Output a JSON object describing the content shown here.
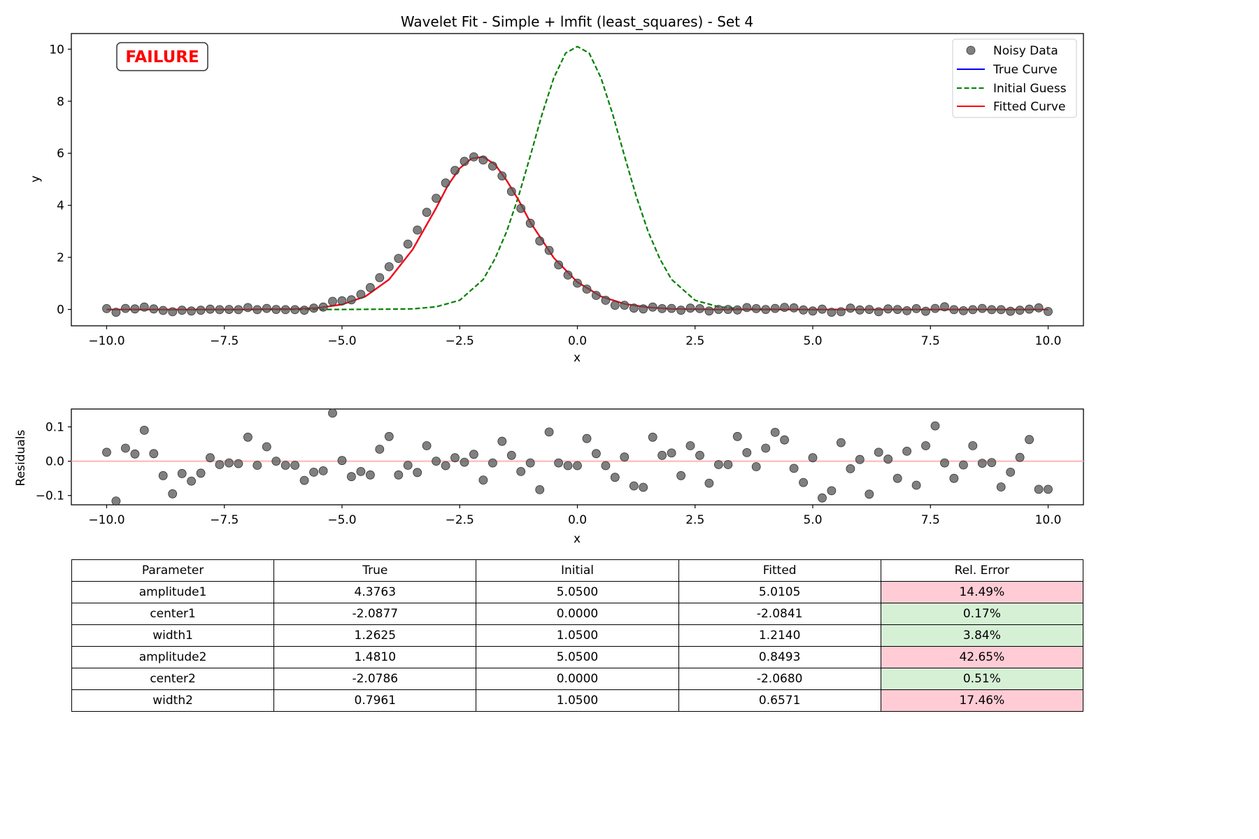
{
  "chart_data": [
    {
      "type": "scatter",
      "title": "Wavelet Fit - Simple + lmfit (least_squares) - Set 4",
      "xlabel": "x",
      "ylabel": "y",
      "xlim": [
        -10.75,
        10.75
      ],
      "ylim": [
        -0.63,
        10.6
      ],
      "xticks": [
        -10.0,
        -7.5,
        -5.0,
        -2.5,
        0.0,
        2.5,
        5.0,
        7.5,
        10.0
      ],
      "xtick_labels": [
        "−10.0",
        "−7.5",
        "−5.0",
        "−2.5",
        "0.0",
        "2.5",
        "5.0",
        "7.5",
        "10.0"
      ],
      "yticks": [
        0,
        2,
        4,
        6,
        8,
        10
      ],
      "ytick_labels": [
        "0",
        "2",
        "4",
        "6",
        "8",
        "10"
      ],
      "grid": false,
      "legend_position": "top-right",
      "annotation": {
        "text": "FAILURE",
        "color": "#ff0000"
      },
      "series": [
        {
          "name": "Noisy Data",
          "kind": "markers",
          "color": "#555555",
          "x": [
            -10.0,
            -9.8,
            -9.6,
            -9.4,
            -9.2,
            -9.0,
            -8.8,
            -8.6,
            -8.4,
            -8.2,
            -8.0,
            -7.8,
            -7.6,
            -7.4,
            -7.2,
            -7.0,
            -6.8,
            -6.6,
            -6.4,
            -6.2,
            -6.0,
            -5.8,
            -5.6,
            -5.4,
            -5.2,
            -5.0,
            -4.8,
            -4.6,
            -4.4,
            -4.2,
            -4.0,
            -3.8,
            -3.6,
            -3.4,
            -3.2,
            -3.0,
            -2.8,
            -2.6,
            -2.4,
            -2.2,
            -2.0,
            -1.8,
            -1.6,
            -1.4,
            -1.2,
            -1.0,
            -0.8,
            -0.6,
            -0.4,
            -0.2,
            0.0,
            0.2,
            0.4,
            0.6,
            0.8,
            1.0,
            1.2,
            1.4,
            1.6,
            1.8,
            2.0,
            2.2,
            2.4,
            2.6,
            2.8,
            3.0,
            3.2,
            3.4,
            3.6,
            3.8,
            4.0,
            4.2,
            4.4,
            4.6,
            4.8,
            5.0,
            5.2,
            5.4,
            5.6,
            5.8,
            6.0,
            6.2,
            6.4,
            6.6,
            6.8,
            7.0,
            7.2,
            7.4,
            7.6,
            7.8,
            8.0,
            8.2,
            8.4,
            8.6,
            8.8,
            9.0,
            9.2,
            9.4,
            9.6,
            9.8,
            10.0
          ],
          "y": [
            0.03,
            -0.11,
            0.04,
            0.02,
            0.09,
            0.02,
            -0.04,
            -0.09,
            -0.03,
            -0.06,
            -0.03,
            0.01,
            -0.01,
            0.0,
            -0.01,
            0.07,
            -0.01,
            0.04,
            0.0,
            -0.01,
            -0.01,
            -0.03,
            0.05,
            0.09,
            0.31,
            0.33,
            0.37,
            0.58,
            0.84,
            1.22,
            1.64,
            1.96,
            2.51,
            3.05,
            3.73,
            4.27,
            4.86,
            5.34,
            5.69,
            5.86,
            5.74,
            5.51,
            5.13,
            4.53,
            3.88,
            3.31,
            2.63,
            2.27,
            1.71,
            1.32,
            1.01,
            0.78,
            0.54,
            0.35,
            0.16,
            0.16,
            0.05,
            0.02,
            0.09,
            0.03,
            0.04,
            -0.03,
            0.05,
            0.03,
            -0.06,
            0.0,
            0.0,
            -0.02,
            0.07,
            0.03,
            0.0,
            0.04,
            0.08,
            0.06,
            -0.02,
            -0.06,
            0.01,
            -0.11,
            -0.09,
            0.05,
            -0.02,
            0.0,
            -0.09,
            0.02,
            0.0,
            -0.05,
            0.03,
            -0.07,
            0.04,
            0.1,
            -0.01,
            -0.05,
            -0.01,
            0.04,
            -0.01,
            -0.01,
            -0.07,
            -0.03,
            0.01,
            0.06,
            -0.08
          ]
        },
        {
          "name": "True Curve",
          "kind": "line",
          "color": "#0000ff",
          "dash": "solid",
          "x": [
            -10.0,
            -9.0,
            -8.0,
            -7.0,
            -6.0,
            -5.5,
            -5.0,
            -4.5,
            -4.0,
            -3.5,
            -3.0,
            -2.75,
            -2.5,
            -2.25,
            -2.0,
            -1.75,
            -1.5,
            -1.25,
            -1.0,
            -0.5,
            0.0,
            0.5,
            1.0,
            1.5,
            2.0,
            3.0,
            4.0,
            5.0,
            6.0,
            7.0,
            8.0,
            9.0,
            10.0
          ],
          "y": [
            0.0,
            0.0,
            0.0,
            0.0,
            0.02,
            0.06,
            0.19,
            0.5,
            1.15,
            2.3,
            3.9,
            4.77,
            5.42,
            5.8,
            5.86,
            5.57,
            4.95,
            4.2,
            3.35,
            1.98,
            1.05,
            0.5,
            0.21,
            0.08,
            0.02,
            0.0,
            0.0,
            0.0,
            0.0,
            0.0,
            0.0,
            0.0,
            0.0
          ]
        },
        {
          "name": "Initial Guess",
          "kind": "line",
          "color": "#008000",
          "dash": "dashed",
          "x": [
            -10.0,
            -6.0,
            -5.0,
            -4.0,
            -3.5,
            -3.0,
            -2.5,
            -2.0,
            -1.75,
            -1.5,
            -1.25,
            -1.0,
            -0.75,
            -0.5,
            -0.25,
            0.0,
            0.25,
            0.5,
            0.75,
            1.0,
            1.25,
            1.5,
            1.75,
            2.0,
            2.5,
            3.0,
            3.5,
            4.0,
            5.0,
            6.0,
            10.0
          ],
          "y": [
            0.0,
            0.0,
            0.0,
            0.01,
            0.02,
            0.1,
            0.35,
            1.15,
            1.95,
            3.0,
            4.35,
            5.9,
            7.5,
            8.9,
            9.85,
            10.1,
            9.85,
            8.9,
            7.5,
            5.9,
            4.35,
            3.0,
            1.95,
            1.15,
            0.35,
            0.1,
            0.02,
            0.01,
            0.0,
            0.0,
            0.0
          ]
        },
        {
          "name": "Fitted Curve",
          "kind": "line",
          "color": "#ff0000",
          "dash": "solid",
          "x": [
            -10.0,
            -9.0,
            -8.0,
            -7.0,
            -6.0,
            -5.5,
            -5.0,
            -4.5,
            -4.0,
            -3.5,
            -3.0,
            -2.75,
            -2.5,
            -2.25,
            -2.0,
            -1.75,
            -1.5,
            -1.25,
            -1.0,
            -0.5,
            0.0,
            0.5,
            1.0,
            1.5,
            2.0,
            3.0,
            4.0,
            5.0,
            6.0,
            7.0,
            8.0,
            9.0,
            10.0
          ],
          "y": [
            0.0,
            0.0,
            0.0,
            0.0,
            0.02,
            0.06,
            0.19,
            0.5,
            1.15,
            2.3,
            3.9,
            4.77,
            5.42,
            5.8,
            5.86,
            5.57,
            4.95,
            4.2,
            3.35,
            1.98,
            1.05,
            0.5,
            0.21,
            0.08,
            0.02,
            0.0,
            0.0,
            0.0,
            0.0,
            0.0,
            0.0,
            0.0,
            0.0
          ]
        }
      ]
    },
    {
      "type": "scatter",
      "title": "",
      "xlabel": "x",
      "ylabel": "Residuals",
      "xlim": [
        -10.75,
        10.75
      ],
      "ylim": [
        -0.127,
        0.152
      ],
      "xticks": [
        -10.0,
        -7.5,
        -5.0,
        -2.5,
        0.0,
        2.5,
        5.0,
        7.5,
        10.0
      ],
      "xtick_labels": [
        "−10.0",
        "−7.5",
        "−5.0",
        "−2.5",
        "0.0",
        "2.5",
        "5.0",
        "7.5",
        "10.0"
      ],
      "yticks": [
        -0.1,
        0.0,
        0.1
      ],
      "ytick_labels": [
        "−0.1",
        "0.0",
        "0.1"
      ],
      "grid": false,
      "reference_line": {
        "y": 0.0,
        "color": "#ffb3b3"
      },
      "series": [
        {
          "kind": "markers",
          "color": "#555555",
          "x": [
            -10.0,
            -9.8,
            -9.6,
            -9.4,
            -9.2,
            -9.0,
            -8.8,
            -8.6,
            -8.4,
            -8.2,
            -8.0,
            -7.8,
            -7.6,
            -7.4,
            -7.2,
            -7.0,
            -6.8,
            -6.6,
            -6.4,
            -6.2,
            -6.0,
            -5.8,
            -5.6,
            -5.4,
            -5.2,
            -5.0,
            -4.8,
            -4.6,
            -4.4,
            -4.2,
            -4.0,
            -3.8,
            -3.6,
            -3.4,
            -3.2,
            -3.0,
            -2.8,
            -2.6,
            -2.4,
            -2.2,
            -2.0,
            -1.8,
            -1.6,
            -1.4,
            -1.2,
            -1.0,
            -0.8,
            -0.6,
            -0.4,
            -0.2,
            0.0,
            0.2,
            0.4,
            0.6,
            0.8,
            1.0,
            1.2,
            1.4,
            1.6,
            1.8,
            2.0,
            2.2,
            2.4,
            2.6,
            2.8,
            3.0,
            3.2,
            3.4,
            3.6,
            3.8,
            4.0,
            4.2,
            4.4,
            4.6,
            4.8,
            5.0,
            5.2,
            5.4,
            5.6,
            5.8,
            6.0,
            6.2,
            6.4,
            6.6,
            6.8,
            7.0,
            7.2,
            7.4,
            7.6,
            7.8,
            8.0,
            8.2,
            8.4,
            8.6,
            8.8,
            9.0,
            9.2,
            9.4,
            9.6,
            9.8,
            10.0
          ],
          "y": [
            0.026,
            -0.116,
            0.038,
            0.021,
            0.09,
            0.022,
            -0.042,
            -0.095,
            -0.036,
            -0.058,
            -0.035,
            0.01,
            -0.01,
            -0.005,
            -0.007,
            0.07,
            -0.012,
            0.042,
            0.0,
            -0.012,
            -0.012,
            -0.056,
            -0.032,
            -0.028,
            0.14,
            0.002,
            -0.045,
            -0.03,
            -0.04,
            0.035,
            0.072,
            -0.04,
            -0.012,
            -0.033,
            0.045,
            0.0,
            -0.013,
            0.01,
            -0.003,
            0.02,
            -0.055,
            -0.005,
            0.058,
            0.017,
            -0.03,
            -0.005,
            -0.083,
            0.085,
            -0.005,
            -0.013,
            -0.013,
            0.066,
            0.022,
            -0.013,
            -0.047,
            0.012,
            -0.072,
            -0.076,
            0.07,
            0.017,
            0.024,
            -0.042,
            0.045,
            0.017,
            -0.064,
            -0.01,
            -0.01,
            0.072,
            0.025,
            -0.016,
            0.038,
            0.084,
            0.062,
            -0.021,
            -0.062,
            0.01,
            -0.107,
            -0.086,
            0.054,
            -0.022,
            0.005,
            -0.096,
            0.026,
            0.006,
            -0.05,
            0.029,
            -0.07,
            0.045,
            0.103,
            -0.005,
            -0.05,
            -0.011,
            0.045,
            -0.006,
            -0.004,
            -0.075,
            -0.032,
            0.011,
            0.063,
            -0.082,
            -0.082
          ]
        }
      ]
    },
    {
      "type": "table",
      "columns": [
        "Parameter",
        "True",
        "Initial",
        "Fitted",
        "Rel. Error"
      ],
      "rows": [
        {
          "cells": [
            "amplitude1",
            "4.3763",
            "5.0500",
            "5.0105",
            "14.49%"
          ],
          "status_color": "#ffccd5"
        },
        {
          "cells": [
            "center1",
            "-2.0877",
            "0.0000",
            "-2.0841",
            "0.17%"
          ],
          "status_color": "#d6f0d6"
        },
        {
          "cells": [
            "width1",
            "1.2625",
            "1.0500",
            "1.2140",
            "3.84%"
          ],
          "status_color": "#d6f0d6"
        },
        {
          "cells": [
            "amplitude2",
            "1.4810",
            "5.0500",
            "0.8493",
            "42.65%"
          ],
          "status_color": "#ffccd5"
        },
        {
          "cells": [
            "center2",
            "-2.0786",
            "0.0000",
            "-2.0680",
            "0.51%"
          ],
          "status_color": "#d6f0d6"
        },
        {
          "cells": [
            "width2",
            "0.7961",
            "1.0500",
            "0.6571",
            "17.46%"
          ],
          "status_color": "#ffccd5"
        }
      ]
    }
  ]
}
